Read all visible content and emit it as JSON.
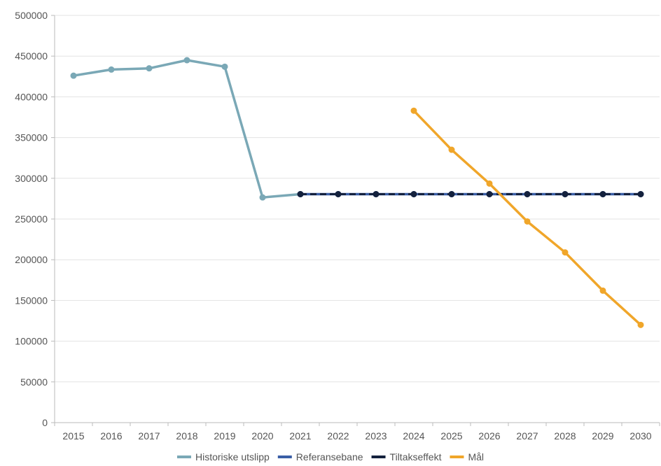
{
  "chart_data": {
    "type": "line",
    "title": "",
    "xlabel": "",
    "ylabel": "",
    "ylim": [
      0,
      500000
    ],
    "yticks": [
      "0",
      "50000",
      "100000",
      "150000",
      "200000",
      "250000",
      "300000",
      "350000",
      "400000",
      "450000",
      "500000"
    ],
    "categories": [
      "2015",
      "2016",
      "2017",
      "2018",
      "2019",
      "2020",
      "2021",
      "2022",
      "2023",
      "2024",
      "2025",
      "2026",
      "2027",
      "2028",
      "2029",
      "2030"
    ],
    "grid": "horizontal",
    "legend_position": "bottom",
    "series": [
      {
        "name": "Historiske utslipp",
        "color": "#7aa8b6",
        "style": "solid",
        "values": [
          426000,
          433500,
          435000,
          445000,
          437000,
          276500,
          280500,
          null,
          null,
          null,
          null,
          null,
          null,
          null,
          null,
          null
        ]
      },
      {
        "name": "Referansebane",
        "color": "#3a5ea6",
        "style": "solid",
        "values": [
          null,
          null,
          null,
          null,
          null,
          null,
          280500,
          280500,
          280500,
          280500,
          280500,
          280500,
          280500,
          280500,
          280500,
          280500
        ]
      },
      {
        "name": "Tiltakseffekt",
        "color": "#14213d",
        "style": "dashed",
        "values": [
          null,
          null,
          null,
          null,
          null,
          null,
          280500,
          280500,
          280500,
          280500,
          280500,
          280500,
          280500,
          280500,
          280500,
          280500
        ]
      },
      {
        "name": "Mål",
        "color": "#f0a62a",
        "style": "solid",
        "values": [
          null,
          null,
          null,
          null,
          null,
          null,
          null,
          null,
          null,
          383000,
          335000,
          293500,
          247000,
          209000,
          162000,
          120000
        ]
      }
    ]
  }
}
